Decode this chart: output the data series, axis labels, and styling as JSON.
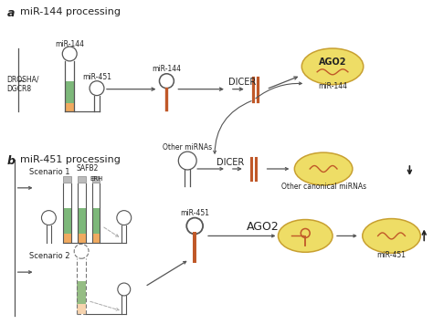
{
  "bg_color": "#ffffff",
  "title_a": "miR-144 processing",
  "title_b": "miR-451 processing",
  "label_a": "a",
  "label_b": "b",
  "stem_color": "#7db87a",
  "base_color": "#f0aa60",
  "orange_rna_color": "#c05828",
  "cell_color": "#eedd66",
  "cell_edge_color": "#c8a030",
  "text_color": "#222222",
  "arrow_color": "#555555",
  "gray_color": "#aaaaaa",
  "safb2_box_color": "#cccccc",
  "scenario1_label": "Scenario 1",
  "scenario2_label": "Scenario 2",
  "drosha_label": "DROSHA/\nDGCR8",
  "safb2_label": "SAFB2",
  "erh_label": "ERH",
  "dicer_label": "DICER",
  "ago2_label": "AGO2",
  "mir144_label": "miR-144",
  "mir451_label": "miR-451",
  "other_mirnas_label": "Other miRNAs",
  "other_canonical_label": "Other canonical miRNAs"
}
